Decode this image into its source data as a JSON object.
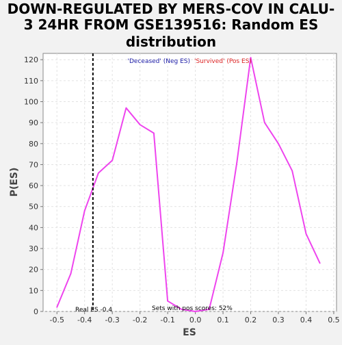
{
  "chart_data": {
    "type": "line",
    "title_lines": [
      "DOWN-REGULATED BY MERS-COV IN CALU-",
      "3 24HR FROM GSE139516: Random ES",
      "distribution"
    ],
    "xlabel": "ES",
    "ylabel": "P(ES)",
    "xlim": [
      -0.55,
      0.51
    ],
    "ylim": [
      0,
      123
    ],
    "grid": true,
    "x_ticks": [
      -0.5,
      -0.4,
      -0.3,
      -0.2,
      -0.1,
      0.0,
      0.1,
      0.2,
      0.3,
      0.4,
      0.5
    ],
    "x_tick_labels": [
      "-0.5",
      "-0.4",
      "-0.3",
      "-0.2",
      "-0.1",
      "0.0",
      "0.1",
      "0.2",
      "0.3",
      "0.4",
      "0.5"
    ],
    "y_ticks": [
      0,
      10,
      20,
      30,
      40,
      50,
      60,
      70,
      80,
      90,
      100,
      110,
      120
    ],
    "y_tick_labels": [
      "0",
      "10",
      "20",
      "30",
      "40",
      "50",
      "60",
      "70",
      "80",
      "90",
      "100",
      "110",
      "120"
    ],
    "series": [
      {
        "color": "#ee44ee",
        "x": [
          -0.5,
          -0.45,
          -0.4,
          -0.35,
          -0.3,
          -0.25,
          -0.2,
          -0.15,
          -0.1,
          -0.05,
          0.0,
          0.05,
          0.1,
          0.15,
          0.2,
          0.25,
          0.3,
          0.35,
          0.4,
          0.45
        ],
        "y": [
          2,
          18,
          48,
          66,
          72,
          97,
          89,
          85,
          5,
          1,
          0,
          1,
          28,
          71,
          121,
          90,
          80,
          67,
          37,
          23
        ]
      }
    ],
    "real_es": {
      "value": -0.37,
      "label": "Real ES -0.4",
      "color": "#000000"
    },
    "legend_neg": {
      "text": "'Deceased' (Neg ES)",
      "color": "#1a1aa6"
    },
    "legend_pos": {
      "text": "'Survived' (Pos ES)",
      "color": "#dd2222"
    },
    "annotation": "Sets with pos scores: 52%"
  }
}
